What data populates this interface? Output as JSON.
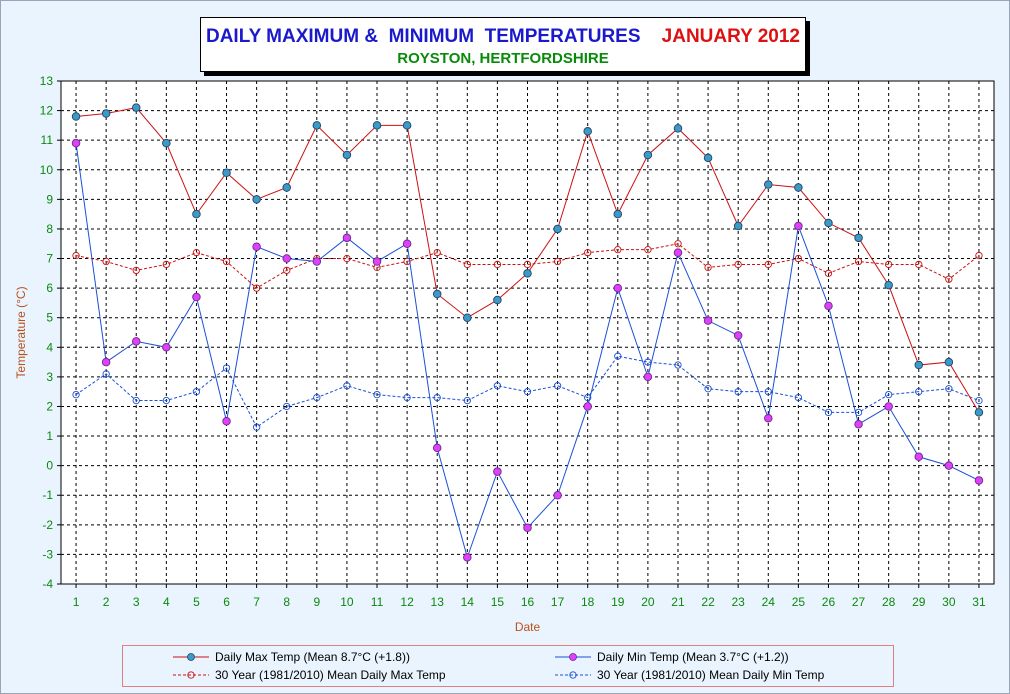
{
  "title": {
    "main": "DAILY MAXIMUM &  MINIMUM  TEMPERATURES",
    "month": "JANUARY 2012",
    "subtitle": "ROYSTON, HERTFORDSHIRE"
  },
  "colors": {
    "max": "#cc1111",
    "max_marker": "#3a9ac8",
    "min": "#1a4fd8",
    "min_marker": "#e040fb",
    "mean_max": "#cc1111",
    "mean_min": "#1a4fd8",
    "axis_text": "#0a8a0a",
    "axis_label": "#b8511a",
    "plot_bg": "#ffffff",
    "panel_bg": "#eaf4ff"
  },
  "chart_data": {
    "type": "line",
    "title": "DAILY MAXIMUM &  MINIMUM  TEMPERATURES   JANUARY 2012",
    "subtitle": "ROYSTON, HERTFORDSHIRE",
    "xlabel": "Date",
    "ylabel": "Temperature (°C)",
    "ylim": [
      -4,
      13
    ],
    "grid": true,
    "legend_position": "bottom",
    "x": [
      1,
      2,
      3,
      4,
      5,
      6,
      7,
      8,
      9,
      10,
      11,
      12,
      13,
      14,
      15,
      16,
      17,
      18,
      19,
      20,
      21,
      22,
      23,
      24,
      25,
      26,
      27,
      28,
      29,
      30,
      31
    ],
    "yticks": [
      -4,
      -3,
      -2,
      -1,
      0,
      1,
      2,
      3,
      4,
      5,
      6,
      7,
      8,
      9,
      10,
      11,
      12,
      13
    ],
    "series": [
      {
        "name": "Daily Max Temp (Mean 8.7°C (+1.8))",
        "style": "solid",
        "values": [
          11.8,
          11.9,
          12.1,
          10.9,
          8.5,
          9.9,
          9.0,
          9.4,
          11.5,
          10.5,
          11.5,
          11.5,
          5.8,
          5.0,
          5.6,
          6.5,
          8.0,
          11.3,
          8.5,
          10.5,
          11.4,
          10.4,
          8.1,
          9.5,
          9.4,
          8.2,
          7.7,
          6.1,
          3.4,
          3.5,
          1.8
        ]
      },
      {
        "name": "Daily Min Temp (Mean 3.7°C (+1.2))",
        "style": "solid",
        "values": [
          10.9,
          3.5,
          4.2,
          4.0,
          5.7,
          1.5,
          7.4,
          7.0,
          6.9,
          7.7,
          6.9,
          7.5,
          0.6,
          -3.1,
          -0.2,
          -2.1,
          -1.0,
          2.0,
          6.0,
          3.0,
          7.2,
          4.9,
          4.4,
          1.6,
          8.1,
          5.4,
          1.4,
          2.0,
          0.3,
          0.0,
          -0.5
        ]
      },
      {
        "name": "30 Year (1981/2010) Mean Daily Max Temp",
        "style": "dashed",
        "values": [
          7.1,
          6.9,
          6.6,
          6.8,
          7.2,
          6.9,
          6.0,
          6.6,
          7.0,
          7.0,
          6.7,
          6.9,
          7.2,
          6.8,
          6.8,
          6.8,
          6.9,
          7.2,
          7.3,
          7.3,
          7.5,
          6.7,
          6.8,
          6.8,
          7.0,
          6.5,
          6.9,
          6.8,
          6.8,
          6.3,
          7.1
        ]
      },
      {
        "name": "30 Year (1981/2010) Mean Daily Min Temp",
        "style": "dashed",
        "values": [
          2.4,
          3.1,
          2.2,
          2.2,
          2.5,
          3.3,
          1.3,
          2.0,
          2.3,
          2.7,
          2.4,
          2.3,
          2.3,
          2.2,
          2.7,
          2.5,
          2.7,
          2.3,
          3.7,
          3.5,
          3.4,
          2.6,
          2.5,
          2.5,
          2.3,
          1.8,
          1.8,
          2.4,
          2.5,
          2.6,
          2.2
        ]
      }
    ]
  }
}
